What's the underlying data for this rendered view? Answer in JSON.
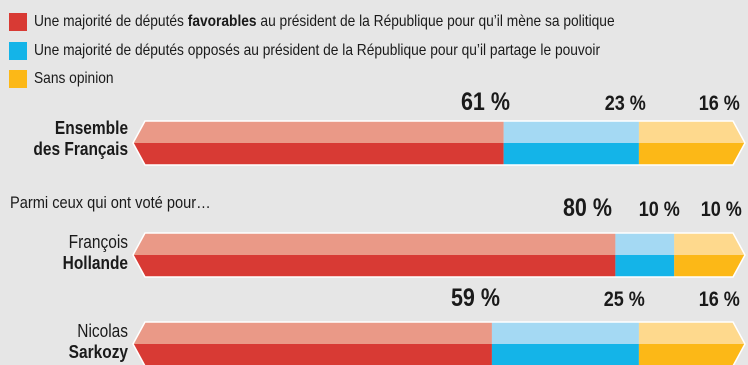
{
  "legend": [
    {
      "prefix": "Une majorité de députés ",
      "bold": "favorables",
      "suffix": " au président de la République pour qu’il mène sa politique",
      "color": "#d83a34"
    },
    {
      "prefix": "Une majorité de députés opposés au président de la République pour qu’il partage le pouvoir",
      "bold": "",
      "suffix": "",
      "color": "#14b4e8"
    },
    {
      "prefix": "Sans opinion",
      "bold": "",
      "suffix": "",
      "color": "#fcb817"
    }
  ],
  "subheading": "Parmi ceux qui ont voté pour…",
  "rows": [
    {
      "line1": "Ensemble",
      "line2": "des Français",
      "line1_bold": true,
      "line2_bold": true,
      "labels": [
        "61 %",
        "23 %",
        "16 %"
      ]
    },
    {
      "line1": "François",
      "line2": "Hollande",
      "line1_bold": false,
      "line2_bold": true,
      "labels": [
        "80 %",
        "10 %",
        "10 %"
      ]
    },
    {
      "line1": "Nicolas",
      "line2": "Sarkozy",
      "line1_bold": false,
      "line2_bold": true,
      "labels": [
        "59 %",
        "25 %",
        "16 %"
      ]
    }
  ],
  "chart_data": {
    "type": "bar",
    "orientation": "horizontal",
    "stacked": true,
    "categories": [
      "Ensemble des Français",
      "François Hollande",
      "Nicolas Sarkozy"
    ],
    "series": [
      {
        "name": "Une majorité de députés favorables au président de la République pour qu’il mène sa politique",
        "values": [
          61,
          80,
          59
        ],
        "color": "#d83a34"
      },
      {
        "name": "Une majorité de députés opposés au président de la République pour qu’il partage le pouvoir",
        "values": [
          23,
          10,
          25
        ],
        "color": "#14b4e8"
      },
      {
        "name": "Sans opinion",
        "values": [
          16,
          10,
          16
        ],
        "color": "#fcb817"
      }
    ],
    "xlim": [
      0,
      100
    ],
    "grid": false,
    "legend_position": "top-left"
  }
}
